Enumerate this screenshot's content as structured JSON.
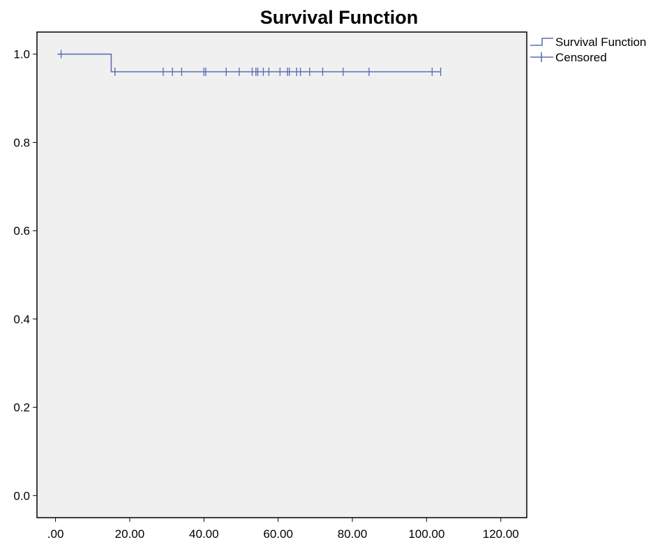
{
  "chart_data": {
    "type": "line",
    "title": "Survival Function",
    "xlabel": "",
    "ylabel": "",
    "xlim": [
      -5,
      127
    ],
    "ylim": [
      -0.05,
      1.05
    ],
    "x_ticks": [
      0,
      20,
      40,
      60,
      80,
      100,
      120
    ],
    "x_tick_labels": [
      ".00",
      "20.00",
      "40.00",
      "60.00",
      "80.00",
      "100.00",
      "120.00"
    ],
    "y_ticks": [
      0.0,
      0.2,
      0.4,
      0.6,
      0.8,
      1.0
    ],
    "y_tick_labels": [
      "0.0",
      "0.2",
      "0.4",
      "0.6",
      "0.8",
      "1.0"
    ],
    "grid": false,
    "legend_position": "right",
    "plot_background": "#f0f0f0",
    "series_color": "#5b6fb8",
    "series": [
      {
        "name": "Survival Function",
        "kind": "step",
        "points": [
          [
            0.5,
            1.0
          ],
          [
            15,
            1.0
          ],
          [
            15,
            0.96
          ],
          [
            103.8,
            0.96
          ]
        ]
      },
      {
        "name": "Censored",
        "kind": "censor-marks",
        "points": [
          [
            1.5,
            1.0
          ],
          [
            16,
            0.96
          ],
          [
            29,
            0.96
          ],
          [
            31.5,
            0.96
          ],
          [
            34,
            0.96
          ],
          [
            40,
            0.96
          ],
          [
            40.5,
            0.96
          ],
          [
            46,
            0.96
          ],
          [
            49.5,
            0.96
          ],
          [
            53,
            0.96
          ],
          [
            54,
            0.96
          ],
          [
            54.5,
            0.96
          ],
          [
            56,
            0.96
          ],
          [
            57.5,
            0.96
          ],
          [
            60.5,
            0.96
          ],
          [
            62.5,
            0.96
          ],
          [
            63,
            0.96
          ],
          [
            65,
            0.96
          ],
          [
            66,
            0.96
          ],
          [
            68.5,
            0.96
          ],
          [
            72,
            0.96
          ],
          [
            77.5,
            0.96
          ],
          [
            84.5,
            0.96
          ],
          [
            101.5,
            0.96
          ],
          [
            103.8,
            0.96
          ]
        ]
      }
    ]
  }
}
